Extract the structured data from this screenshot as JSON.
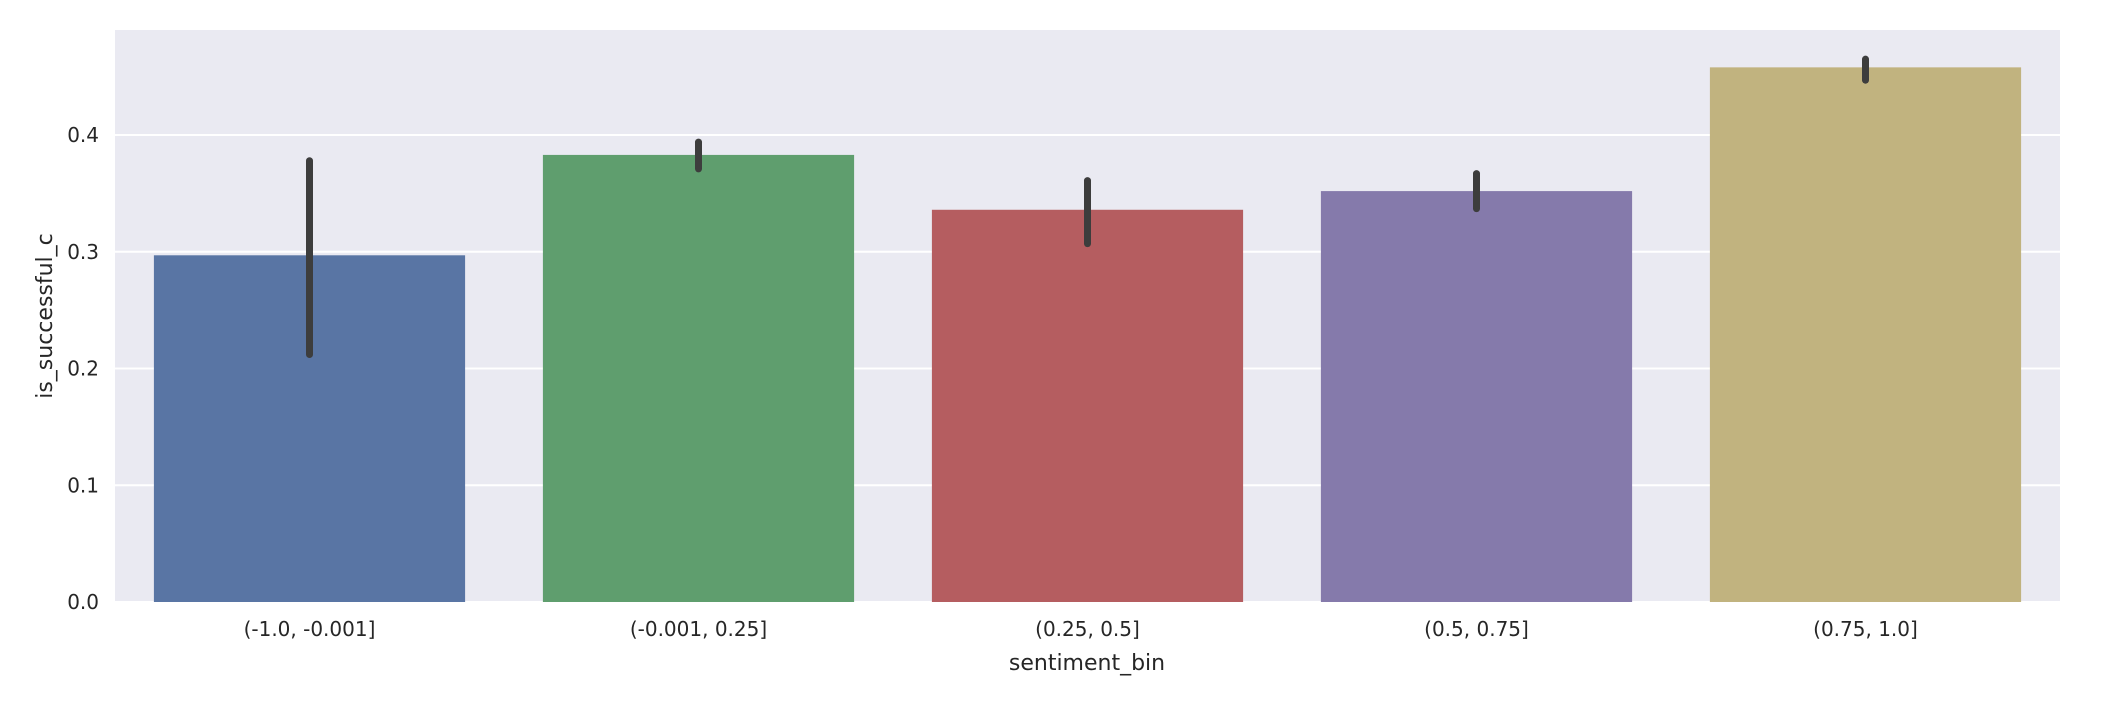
{
  "chart_data": {
    "type": "bar",
    "title": "",
    "xlabel": "sentiment_bin",
    "ylabel": "is_successful_c",
    "categories": [
      "(-1.0, -0.001]",
      "(-0.001, 0.25]",
      "(0.25, 0.5]",
      "(0.5, 0.75]",
      "(0.75, 1.0]"
    ],
    "values": [
      0.297,
      0.383,
      0.336,
      0.352,
      0.458
    ],
    "error_low": [
      0.212,
      0.371,
      0.307,
      0.337,
      0.447
    ],
    "error_high": [
      0.378,
      0.394,
      0.361,
      0.367,
      0.465
    ],
    "colors": [
      "#5975a4",
      "#5f9e6e",
      "#b55d60",
      "#857aab",
      "#c1b37f"
    ],
    "error_color": "#3d3d3d",
    "ylim": [
      0,
      0.49
    ],
    "yticks": [
      0.0,
      0.1,
      0.2,
      0.3,
      0.4
    ],
    "ytick_labels": [
      "0.0",
      "0.1",
      "0.2",
      "0.3",
      "0.4"
    ],
    "grid": true,
    "background": "#eaeaf2",
    "grid_color": "#ffffff"
  }
}
